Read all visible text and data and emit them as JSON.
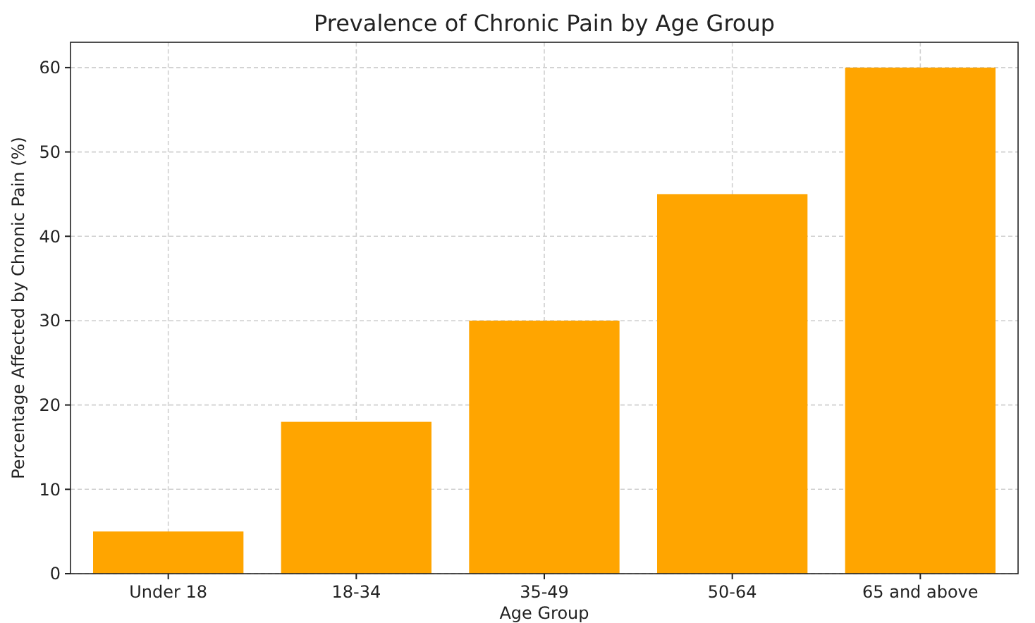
{
  "chart_data": {
    "type": "bar",
    "title": "Prevalence of Chronic Pain by Age Group",
    "xlabel": "Age Group",
    "ylabel": "Percentage Affected by Chronic Pain (%)",
    "categories": [
      "Under 18",
      "18-34",
      "35-49",
      "50-64",
      "65 and above"
    ],
    "values": [
      5,
      18,
      30,
      45,
      60
    ],
    "color": "#ffa500",
    "ylim": [
      0,
      63
    ],
    "yticks": [
      0,
      10,
      20,
      30,
      40,
      50,
      60
    ],
    "grid": true
  }
}
